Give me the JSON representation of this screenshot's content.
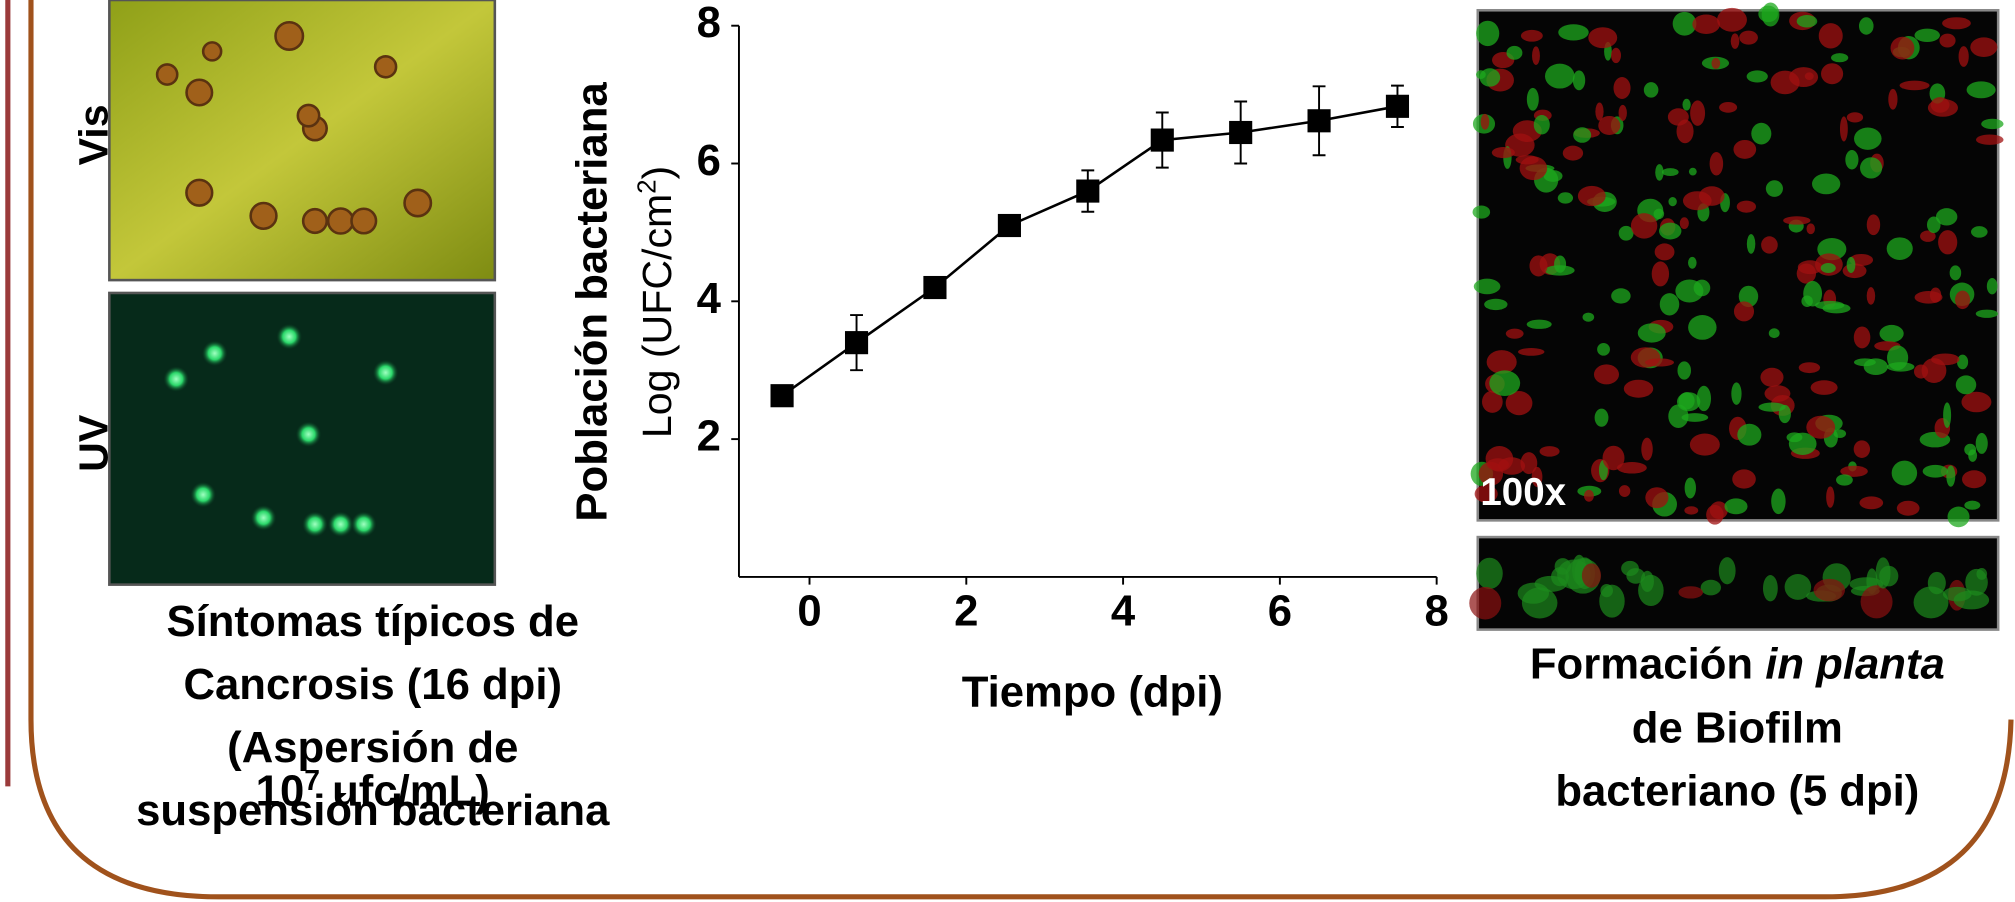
{
  "chart_data": {
    "type": "line",
    "ylabel": "Población bacteriana",
    "ylabel2": {
      "text": "Log (UFC/cm",
      "sup": "2",
      "tail": ")"
    },
    "xlabel": "Tiempo (dpi)",
    "x": [
      -0.35,
      0.6,
      1.6,
      2.55,
      3.55,
      4.5,
      5.5,
      6.5,
      7.5
    ],
    "values": [
      2.63,
      3.4,
      4.2,
      5.1,
      5.6,
      6.34,
      6.45,
      6.62,
      6.83
    ],
    "errors": [
      0.05,
      0.4,
      0.15,
      0.05,
      0.3,
      0.4,
      0.45,
      0.5,
      0.3
    ],
    "color": "#000000",
    "xlim": [
      -0.9,
      8
    ],
    "xticks": [
      0,
      2,
      4,
      6,
      8
    ],
    "ylim": [
      0,
      8
    ],
    "yticks": [
      2,
      4,
      6,
      8
    ]
  },
  "left_panel": {
    "vis_label": "Vis",
    "uv_label": "UV",
    "caption": [
      "Síntomas típicos de",
      "Cancrosis (16 dpi)",
      "(Aspersión de",
      "suspensión bacteriana"
    ],
    "caption_last": {
      "base": "10",
      "sup": "7",
      "tail": " ufc/mL)"
    }
  },
  "right_panel": {
    "magnification": "100x",
    "caption_first": {
      "text": "Formación ",
      "italic": "in planta"
    },
    "caption": [
      "de Biofilm",
      "bacteriano (5 dpi)"
    ]
  }
}
